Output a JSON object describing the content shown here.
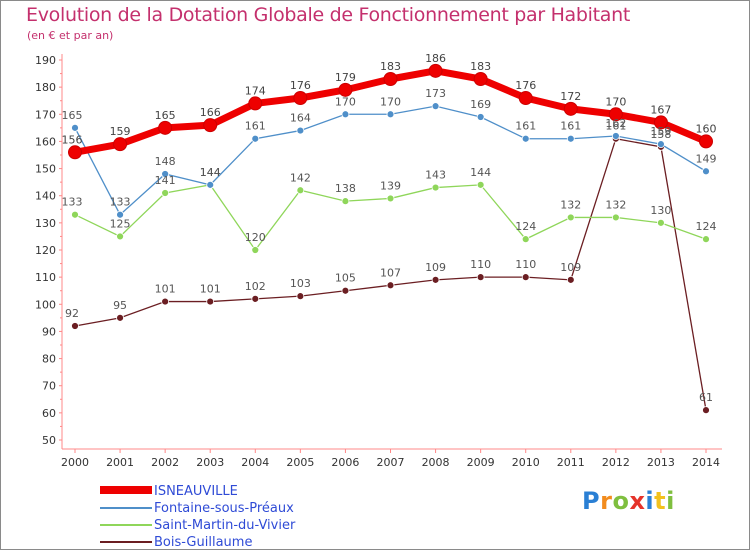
{
  "title": "Evolution de la Dotation Globale de Fonctionnement par Habitant",
  "subtitle": "(en € et par an)",
  "logo_text": "Proxiti",
  "chart_data": {
    "type": "line",
    "title": "Evolution de la Dotation Globale de Fonctionnement par Habitant",
    "ylabel": "(en € et par an)",
    "xlabel": "",
    "x": [
      "2000",
      "2001",
      "2002",
      "2003",
      "2004",
      "2005",
      "2006",
      "2007",
      "2008",
      "2009",
      "2010",
      "2011",
      "2012",
      "2013",
      "2014"
    ],
    "ylim": [
      50,
      190
    ],
    "yticks": [
      50,
      60,
      70,
      80,
      90,
      100,
      110,
      120,
      130,
      140,
      150,
      160,
      170,
      180,
      190
    ],
    "grid": false,
    "legend_position": "bottom-left",
    "series": [
      {
        "name": "ISNEAUVILLE",
        "color": "#ee0000",
        "values": [
          156,
          159,
          165,
          166,
          174,
          176,
          179,
          183,
          186,
          183,
          176,
          172,
          170,
          167,
          160
        ]
      },
      {
        "name": "Fontaine-sous-Préaux",
        "color": "#4f8fc9",
        "values": [
          165,
          133,
          148,
          144,
          161,
          164,
          170,
          170,
          173,
          169,
          161,
          161,
          162,
          159,
          149
        ]
      },
      {
        "name": "Saint-Martin-du-Vivier",
        "color": "#8fd65a",
        "values": [
          133,
          125,
          141,
          144,
          120,
          142,
          138,
          139,
          143,
          144,
          124,
          132,
          132,
          130,
          124
        ]
      },
      {
        "name": "Bois-Guillaume",
        "color": "#6b1e22",
        "values": [
          92,
          95,
          101,
          101,
          102,
          103,
          105,
          107,
          109,
          110,
          110,
          109,
          161,
          158,
          61
        ]
      }
    ]
  }
}
